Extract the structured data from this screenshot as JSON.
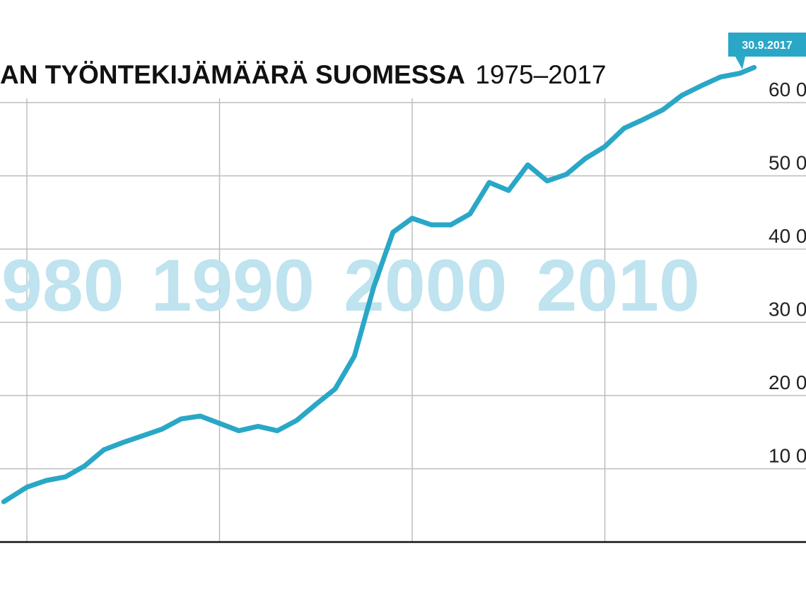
{
  "chart_data": {
    "type": "line",
    "title_bold": "AN TYÖNTEKIJÄMÄÄRÄ SUOMESSA",
    "title_light": "1975–2017",
    "colors": {
      "line": "#2aa7c7",
      "decade": "#bfe3ef",
      "grid": "#bdbdbd",
      "callout": "#2aa7c7"
    },
    "ylim": [
      0,
      62000
    ],
    "xlim": [
      1978.8,
      2019.9
    ],
    "y_ticks": [
      {
        "value": 10000,
        "label": "10 0"
      },
      {
        "value": 20000,
        "label": "20 0"
      },
      {
        "value": 30000,
        "label": "30 0"
      },
      {
        "value": 40000,
        "label": "40 0"
      },
      {
        "value": 50000,
        "label": "50 0"
      },
      {
        "value": 60000,
        "label": "60 0"
      }
    ],
    "x_gridlines": [
      1980,
      1990,
      2000,
      2010
    ],
    "decade_labels": [
      {
        "value": 1980,
        "label": "980"
      },
      {
        "value": 1990,
        "label": "1990"
      },
      {
        "value": 2000,
        "label": "2000"
      },
      {
        "value": 2010,
        "label": "2010"
      }
    ],
    "callout": {
      "label": "30.9.2017",
      "x": 2017.75
    },
    "series": [
      {
        "x": [
          1978.8,
          1980,
          1981,
          1982,
          1983,
          1984,
          1985,
          1986,
          1987,
          1988,
          1989,
          1990,
          1991,
          1992,
          1993,
          1994,
          1995,
          1996,
          1997,
          1998,
          1999,
          2000,
          2001,
          2002,
          2003,
          2004,
          2005,
          2006,
          2007,
          2008,
          2009,
          2010,
          2011,
          2012,
          2013,
          2014,
          2015,
          2016,
          2017,
          2017.75
        ],
        "y": [
          5500,
          7500,
          8400,
          8900,
          10400,
          12600,
          13600,
          14500,
          15400,
          16800,
          17200,
          16200,
          15200,
          15800,
          15200,
          16600,
          18800,
          20900,
          25400,
          34800,
          42300,
          44200,
          43300,
          43300,
          44800,
          49100,
          48000,
          51500,
          49300,
          50200,
          52400,
          54000,
          56500,
          57700,
          59000,
          61000,
          62300,
          63500,
          64000,
          64800
        ]
      }
    ]
  }
}
